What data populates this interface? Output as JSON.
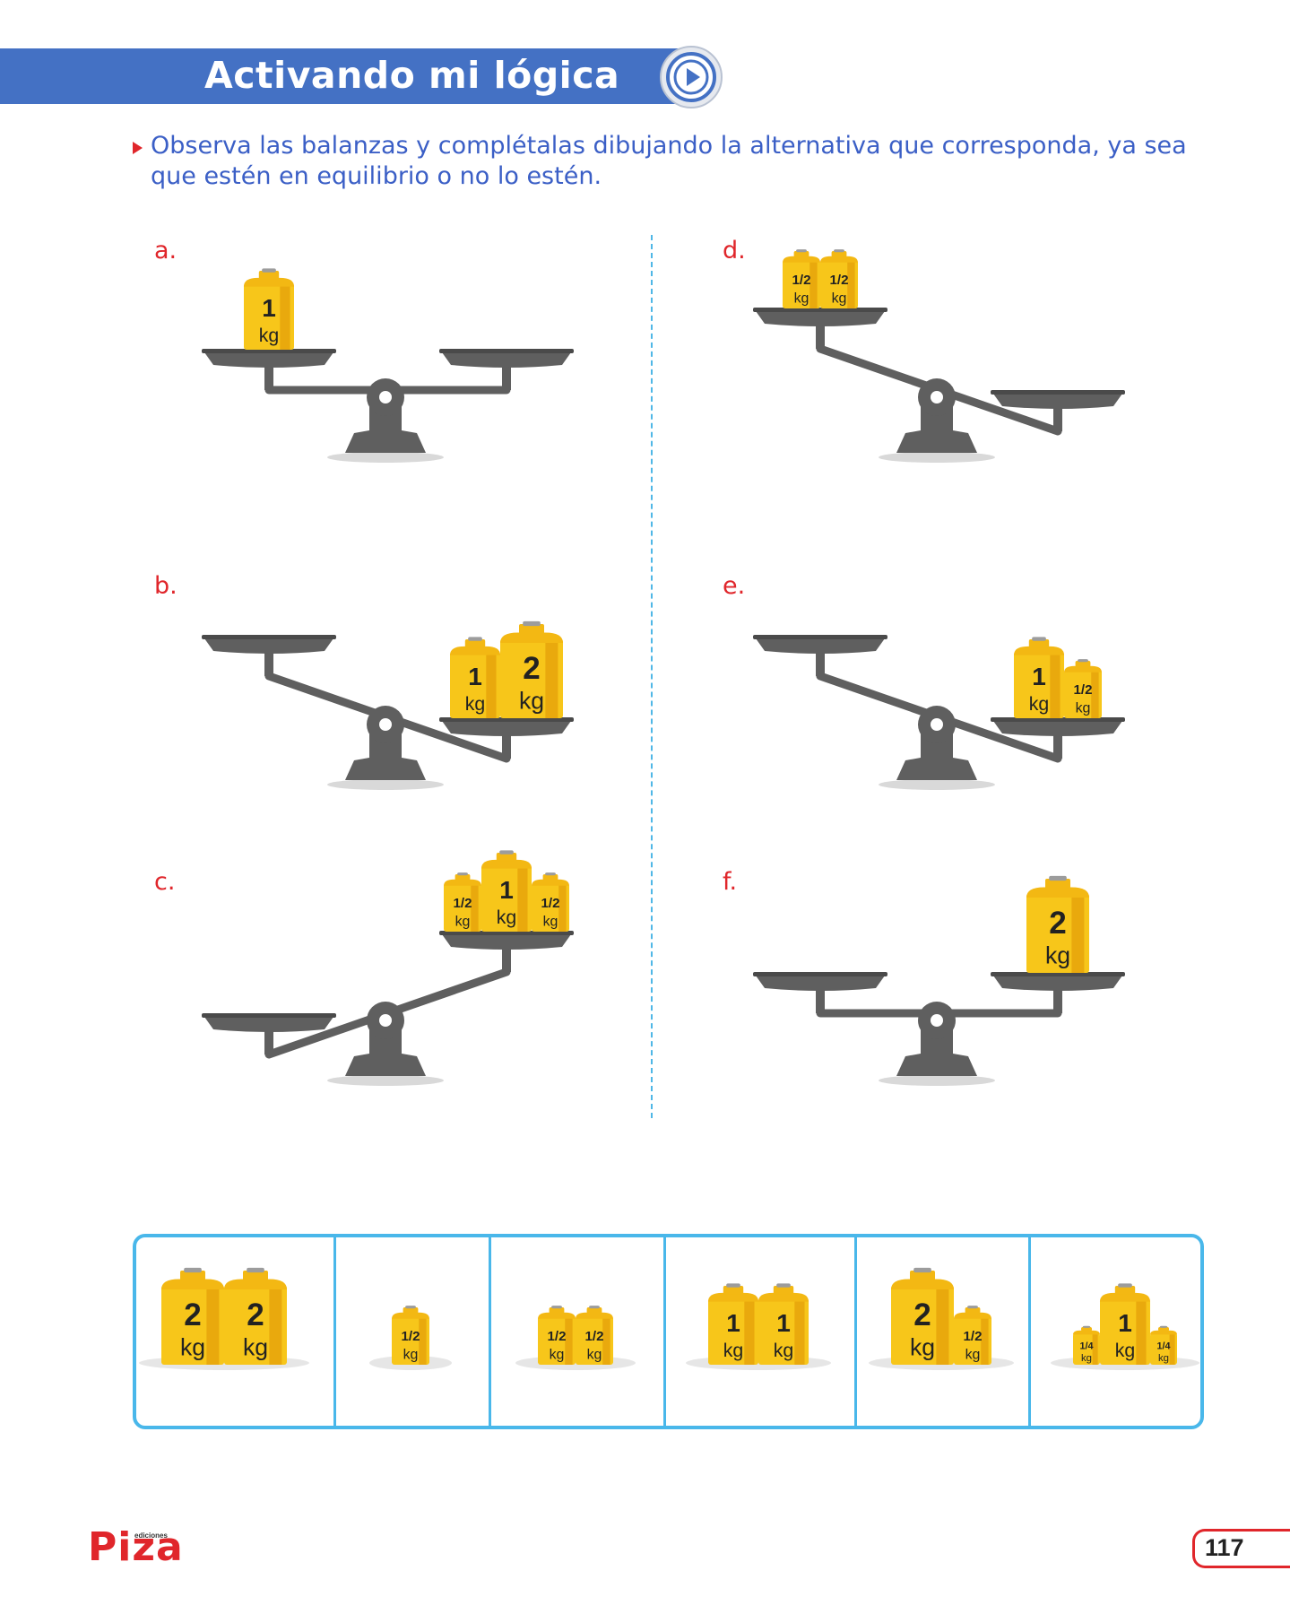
{
  "header": {
    "title": "Activando mi lógica"
  },
  "instruction": "Observa las balanzas y complétalas dibujando la alternativa que corresponda, ya sea que estén en equilibrio o no lo estén.",
  "scales": [
    {
      "letter": "a.",
      "tilt": "level",
      "left_weights": [
        {
          "num": "1",
          "unit": "kg"
        }
      ],
      "right_weights": []
    },
    {
      "letter": "b.",
      "tilt": "right-down",
      "left_weights": [],
      "right_weights": [
        {
          "num": "1",
          "unit": "kg"
        },
        {
          "num": "2",
          "unit": "kg"
        }
      ]
    },
    {
      "letter": "c.",
      "tilt": "left-down",
      "left_weights": [],
      "right_weights": [
        {
          "num": "1/2",
          "unit": "kg"
        },
        {
          "num": "1",
          "unit": "kg"
        },
        {
          "num": "1/2",
          "unit": "kg"
        }
      ]
    },
    {
      "letter": "d.",
      "tilt": "right-down",
      "left_weights": [
        {
          "num": "1/2",
          "unit": "kg"
        },
        {
          "num": "1/2",
          "unit": "kg"
        }
      ],
      "right_weights": []
    },
    {
      "letter": "e.",
      "tilt": "right-down",
      "left_weights": [],
      "right_weights": [
        {
          "num": "1",
          "unit": "kg"
        },
        {
          "num": "1/2",
          "unit": "kg"
        }
      ]
    },
    {
      "letter": "f.",
      "tilt": "level",
      "left_weights": [],
      "right_weights": [
        {
          "num": "2",
          "unit": "kg"
        }
      ]
    }
  ],
  "options": [
    [
      {
        "num": "2",
        "unit": "kg"
      },
      {
        "num": "2",
        "unit": "kg"
      }
    ],
    [
      {
        "num": "1/2",
        "unit": "kg"
      }
    ],
    [
      {
        "num": "1/2",
        "unit": "kg"
      },
      {
        "num": "1/2",
        "unit": "kg"
      }
    ],
    [
      {
        "num": "1",
        "unit": "kg"
      },
      {
        "num": "1",
        "unit": "kg"
      }
    ],
    [
      {
        "num": "2",
        "unit": "kg"
      },
      {
        "num": "1/2",
        "unit": "kg"
      }
    ],
    [
      {
        "num": "1/4",
        "unit": "kg"
      },
      {
        "num": "1",
        "unit": "kg"
      },
      {
        "num": "1/4",
        "unit": "kg"
      }
    ]
  ],
  "footer": {
    "logo": "Piza",
    "logo_sub": "ediciones",
    "page_number": "117"
  },
  "colors": {
    "banner": "#4471c4",
    "accent": "#e0262b",
    "text_blue": "#3b5fc6",
    "weight": "#f7c61a",
    "scale": "#5f5f5f",
    "box": "#49b7ea"
  }
}
